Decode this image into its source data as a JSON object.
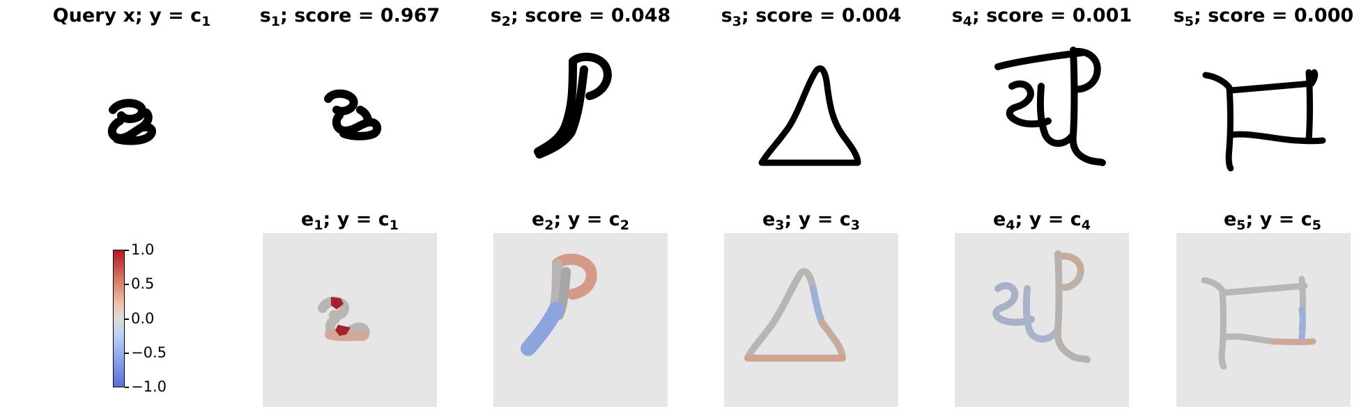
{
  "top_row": {
    "query_title": "Query x; y = c",
    "query_sub": "1",
    "panels": [
      {
        "s": "s",
        "sub": "1",
        "rest": "; score = 0.967"
      },
      {
        "s": "s",
        "sub": "2",
        "rest": "; score = 0.048"
      },
      {
        "s": "s",
        "sub": "3",
        "rest": "; score = 0.004"
      },
      {
        "s": "s",
        "sub": "4",
        "rest": "; score = 0.001"
      },
      {
        "s": "s",
        "sub": "5",
        "rest": "; score = 0.000"
      }
    ]
  },
  "bottom_row": {
    "panels": [
      {
        "e": "e",
        "sub": "1",
        "rest": "; y = c",
        "csub": "1"
      },
      {
        "e": "e",
        "sub": "2",
        "rest": "; y = c",
        "csub": "2"
      },
      {
        "e": "e",
        "sub": "3",
        "rest": "; y = c",
        "csub": "3"
      },
      {
        "e": "e",
        "sub": "4",
        "rest": "; y = c",
        "csub": "4"
      },
      {
        "e": "e",
        "sub": "5",
        "rest": "; y = c",
        "csub": "5"
      }
    ]
  },
  "colorbar": {
    "ticks": [
      "1.0",
      "0.5",
      "0.0",
      "−0.5",
      "−1.0"
    ],
    "colors": {
      "high": "#b2192b",
      "mid": "#dddcdc",
      "low": "#5b6ed8"
    }
  }
}
